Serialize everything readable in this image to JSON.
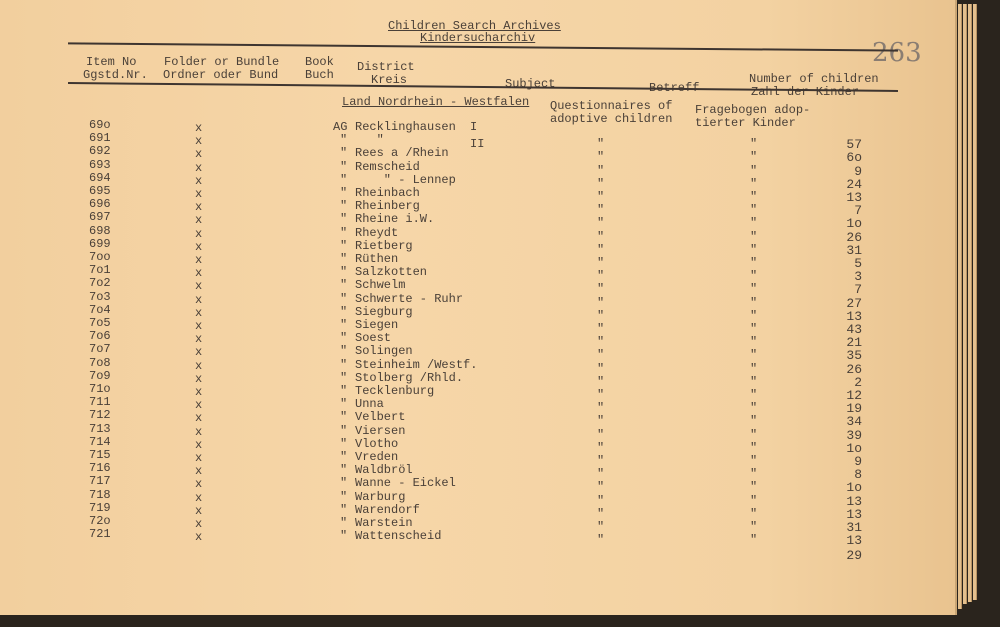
{
  "title": "Children Search Archives",
  "subtitle": "Kindersucharchiv",
  "page_number": "263",
  "headers": {
    "item_no": "Item No",
    "item_no_de": "Ggstd.Nr.",
    "folder": "Folder or Bundle",
    "folder_de": "Ordner oder Bund",
    "book": "Book",
    "book_de": "Buch",
    "district": "District",
    "district_de": "Kreis",
    "subject": "Subject",
    "subject_de": "Betreff",
    "count": "Number of children",
    "count_de": "Zahl der Kinder"
  },
  "section": "Land Nordrhein - Westfalen",
  "subject_en": "Questionnaires of\nadoptive children",
  "subject_de": "Fragebogen adop-\ntierter Kinder",
  "rows": [
    {
      "item": "69o",
      "folder": "x",
      "prefix": "AG",
      "district": "Recklinghausen",
      "suffix": "I",
      "s1": "",
      "s2": "",
      "count": ""
    },
    {
      "item": "691",
      "folder": "x",
      "prefix": "\"",
      "district": "   \"",
      "suffix": "II",
      "s1": "\"",
      "s2": "\"",
      "count": "57"
    },
    {
      "item": "692",
      "folder": "x",
      "prefix": "\"",
      "district": "Rees a /Rhein",
      "suffix": "",
      "s1": "\"",
      "s2": "\"",
      "count": "6o"
    },
    {
      "item": "693",
      "folder": "x",
      "prefix": "\"",
      "district": "Remscheid",
      "suffix": "",
      "s1": "\"",
      "s2": "\"",
      "count": "9"
    },
    {
      "item": "694",
      "folder": "x",
      "prefix": "\"",
      "district": "    \" - Lennep",
      "suffix": "",
      "s1": "\"",
      "s2": "\"",
      "count": "24"
    },
    {
      "item": "695",
      "folder": "x",
      "prefix": "\"",
      "district": "Rheinbach",
      "suffix": "",
      "s1": "\"",
      "s2": "\"",
      "count": "13"
    },
    {
      "item": "696",
      "folder": "x",
      "prefix": "\"",
      "district": "Rheinberg",
      "suffix": "",
      "s1": "\"",
      "s2": "\"",
      "count": "7"
    },
    {
      "item": "697",
      "folder": "x",
      "prefix": "\"",
      "district": "Rheine i.W.",
      "suffix": "",
      "s1": "\"",
      "s2": "\"",
      "count": "1o"
    },
    {
      "item": "698",
      "folder": "x",
      "prefix": "\"",
      "district": "Rheydt",
      "suffix": "",
      "s1": "\"",
      "s2": "\"",
      "count": "26"
    },
    {
      "item": "699",
      "folder": "x",
      "prefix": "\"",
      "district": "Rietberg",
      "suffix": "",
      "s1": "\"",
      "s2": "\"",
      "count": "31"
    },
    {
      "item": "7oo",
      "folder": "x",
      "prefix": "\"",
      "district": "Rüthen",
      "suffix": "",
      "s1": "\"",
      "s2": "\"",
      "count": "5"
    },
    {
      "item": "7o1",
      "folder": "x",
      "prefix": "\"",
      "district": "Salzkotten",
      "suffix": "",
      "s1": "\"",
      "s2": "\"",
      "count": "3"
    },
    {
      "item": "7o2",
      "folder": "x",
      "prefix": "\"",
      "district": "Schwelm",
      "suffix": "",
      "s1": "\"",
      "s2": "\"",
      "count": "7"
    },
    {
      "item": "7o3",
      "folder": "x",
      "prefix": "\"",
      "district": "Schwerte - Ruhr",
      "suffix": "",
      "s1": "\"",
      "s2": "\"",
      "count": "27"
    },
    {
      "item": "7o4",
      "folder": "x",
      "prefix": "\"",
      "district": "Siegburg",
      "suffix": "",
      "s1": "\"",
      "s2": "\"",
      "count": "13"
    },
    {
      "item": "7o5",
      "folder": "x",
      "prefix": "\"",
      "district": "Siegen",
      "suffix": "",
      "s1": "\"",
      "s2": "\"",
      "count": "43"
    },
    {
      "item": "7o6",
      "folder": "x",
      "prefix": "\"",
      "district": "Soest",
      "suffix": "",
      "s1": "\"",
      "s2": "\"",
      "count": "21"
    },
    {
      "item": "7o7",
      "folder": "x",
      "prefix": "\"",
      "district": "Solingen",
      "suffix": "",
      "s1": "\"",
      "s2": "\"",
      "count": "35"
    },
    {
      "item": "7o8",
      "folder": "x",
      "prefix": "\"",
      "district": "Steinheim /Westf.",
      "suffix": "",
      "s1": "\"",
      "s2": "\"",
      "count": "26"
    },
    {
      "item": "7o9",
      "folder": "x",
      "prefix": "\"",
      "district": "Stolberg /Rhld.",
      "suffix": "",
      "s1": "\"",
      "s2": "\"",
      "count": "2"
    },
    {
      "item": "71o",
      "folder": "x",
      "prefix": "\"",
      "district": "Tecklenburg",
      "suffix": "",
      "s1": "\"",
      "s2": "\"",
      "count": "12"
    },
    {
      "item": "711",
      "folder": "x",
      "prefix": "\"",
      "district": "Unna",
      "suffix": "",
      "s1": "\"",
      "s2": "\"",
      "count": "19"
    },
    {
      "item": "712",
      "folder": "x",
      "prefix": "\"",
      "district": "Velbert",
      "suffix": "",
      "s1": "\"",
      "s2": "\"",
      "count": "34"
    },
    {
      "item": "713",
      "folder": "x",
      "prefix": "\"",
      "district": "Viersen",
      "suffix": "",
      "s1": "\"",
      "s2": "\"",
      "count": "39"
    },
    {
      "item": "714",
      "folder": "x",
      "prefix": "\"",
      "district": "Vlotho",
      "suffix": "",
      "s1": "\"",
      "s2": "\"",
      "count": "1o"
    },
    {
      "item": "715",
      "folder": "x",
      "prefix": "\"",
      "district": "Vreden",
      "suffix": "",
      "s1": "\"",
      "s2": "\"",
      "count": "9"
    },
    {
      "item": "716",
      "folder": "x",
      "prefix": "\"",
      "district": "Waldbröl",
      "suffix": "",
      "s1": "\"",
      "s2": "\"",
      "count": "8"
    },
    {
      "item": "717",
      "folder": "x",
      "prefix": "\"",
      "district": "Wanne - Eickel",
      "suffix": "",
      "s1": "\"",
      "s2": "\"",
      "count": "1o"
    },
    {
      "item": "718",
      "folder": "x",
      "prefix": "\"",
      "district": "Warburg",
      "suffix": "",
      "s1": "\"",
      "s2": "\"",
      "count": "13"
    },
    {
      "item": "719",
      "folder": "x",
      "prefix": "\"",
      "district": "Warendorf",
      "suffix": "",
      "s1": "\"",
      "s2": "\"",
      "count": "13"
    },
    {
      "item": "72o",
      "folder": "x",
      "prefix": "\"",
      "district": "Warstein",
      "suffix": "",
      "s1": "\"",
      "s2": "\"",
      "count": "31"
    },
    {
      "item": "721",
      "folder": "x",
      "prefix": "\"",
      "district": "Wattenscheid",
      "suffix": "",
      "s1": "\"",
      "s2": "\"",
      "count": "13"
    }
  ],
  "trailing_count": "29"
}
